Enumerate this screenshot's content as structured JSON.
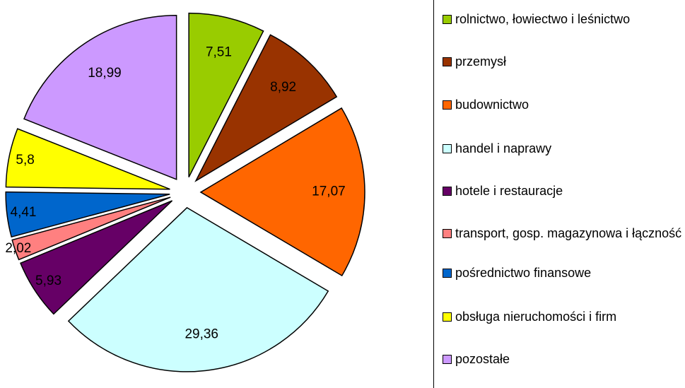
{
  "chart_data": {
    "type": "pie",
    "categories": [
      "rolnictwo, łowiectwo i leśnictwo",
      "przemysł",
      "budownictwo",
      "handel i naprawy",
      "hotele i restauracje",
      "transport, gosp. magazynowa i łączność",
      "pośrednictwo finansowe",
      "obsługa nieruchomości i firm",
      "pozostałe"
    ],
    "values": [
      7.51,
      8.92,
      17.07,
      29.36,
      5.93,
      2.02,
      4.41,
      5.8,
      18.99
    ],
    "value_labels": [
      "7,51",
      "8,92",
      "17,07",
      "29,36",
      "5,93",
      "2,02",
      "4,41",
      "5,8",
      "18,99"
    ],
    "colors": [
      "#99cc00",
      "#993300",
      "#ff6600",
      "#ccffff",
      "#660066",
      "#ff8080",
      "#0066cc",
      "#ffff00",
      "#cc99ff"
    ],
    "legend": "right"
  }
}
